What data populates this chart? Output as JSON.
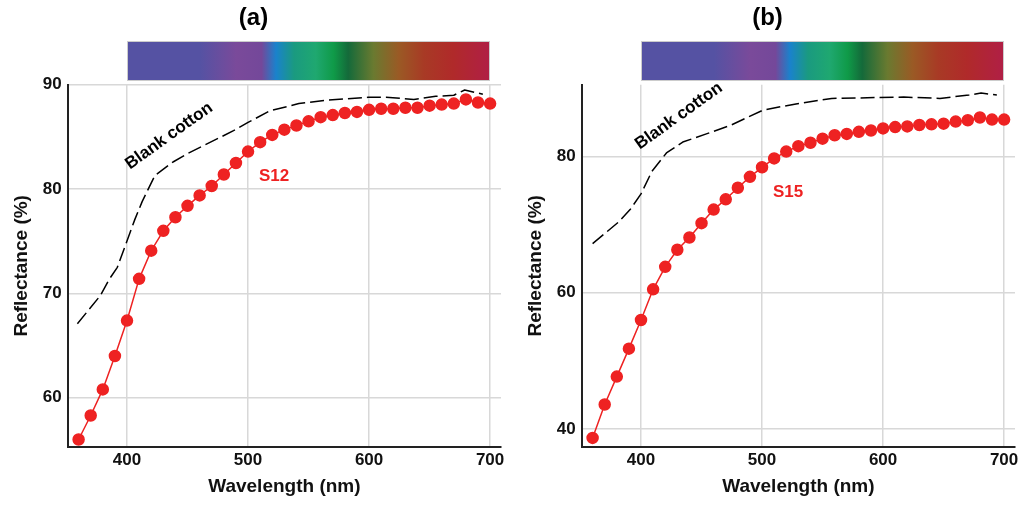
{
  "chart_data": [
    {
      "type": "line",
      "title": "(a)",
      "xlabel": "Wavelength (nm)",
      "ylabel": "Reflectance (%)",
      "xlim": [
        351,
        709
      ],
      "ylim": [
        55.3,
        90
      ],
      "xticks": [
        400,
        500,
        600,
        700
      ],
      "yticks": [
        60,
        70,
        80,
        90
      ],
      "grid": true,
      "legend": false,
      "series": [
        {
          "name": "Blank cotton",
          "color": "#000000",
          "line_style": "dashed",
          "marker": "none",
          "x": [
            359,
            378,
            385,
            392,
            406.5,
            412.5,
            423,
            438,
            450,
            488,
            500,
            518,
            542,
            563,
            599,
            614,
            637,
            655,
            670,
            679,
            694
          ],
          "values": [
            67.1,
            69.8,
            71.3,
            72.5,
            77.1,
            78.8,
            81.3,
            82.6,
            83.4,
            85.6,
            86.4,
            87.5,
            88.2,
            88.5,
            88.8,
            88.8,
            88.6,
            88.9,
            89.0,
            89.5,
            89.1
          ]
        },
        {
          "name": "S12",
          "color": "#ee2222",
          "line_style": "solid",
          "marker": "circle",
          "x": [
            360,
            370,
            380,
            390,
            400,
            410,
            420,
            430,
            440,
            450,
            460,
            470,
            480,
            490,
            500,
            510,
            520,
            530,
            540,
            550,
            560,
            570,
            580,
            590,
            600,
            610,
            620,
            630,
            640,
            650,
            660,
            670,
            680,
            690,
            700
          ],
          "values": [
            56.0,
            58.3,
            60.8,
            64.0,
            67.4,
            71.4,
            74.1,
            76.0,
            77.3,
            78.4,
            79.4,
            80.3,
            81.4,
            82.5,
            83.6,
            84.5,
            85.2,
            85.7,
            86.1,
            86.5,
            86.9,
            87.1,
            87.3,
            87.4,
            87.6,
            87.7,
            87.7,
            87.8,
            87.8,
            88.0,
            88.1,
            88.2,
            88.6,
            88.3,
            88.2
          ]
        }
      ]
    },
    {
      "type": "line",
      "title": "(b)",
      "xlabel": "Wavelength (nm)",
      "ylabel": "Reflectance (%)",
      "xlim": [
        351,
        709
      ],
      "ylim": [
        37.4,
        90.5
      ],
      "xticks": [
        400,
        500,
        600,
        700
      ],
      "yticks": [
        40,
        60,
        80
      ],
      "grid": true,
      "legend": false,
      "series": [
        {
          "name": "Blank cotton",
          "color": "#000000",
          "line_style": "dashed",
          "marker": "none",
          "x": [
            360,
            381,
            391,
            400,
            409,
            421,
            434.5,
            454,
            474.5,
            501,
            528,
            557.5,
            587,
            617,
            647,
            671,
            681,
            694
          ],
          "values": [
            67.2,
            70.3,
            72.2,
            74.5,
            77.8,
            80.5,
            82.1,
            83.3,
            84.6,
            86.8,
            87.7,
            88.5,
            88.6,
            88.7,
            88.5,
            89.0,
            89.3,
            89.0
          ]
        },
        {
          "name": "S15",
          "color": "#ee2222",
          "line_style": "solid",
          "marker": "circle",
          "x": [
            360,
            370,
            380,
            390,
            400,
            410,
            420,
            430,
            440,
            450,
            460,
            470,
            480,
            490,
            500,
            510,
            520,
            530,
            540,
            550,
            560,
            570,
            580,
            590,
            600,
            610,
            620,
            630,
            640,
            650,
            660,
            670,
            680,
            690,
            700
          ],
          "values": [
            38.7,
            43.6,
            47.7,
            51.8,
            56.0,
            60.5,
            63.8,
            66.3,
            68.1,
            70.2,
            72.2,
            73.7,
            75.4,
            77.0,
            78.4,
            79.7,
            80.7,
            81.5,
            82.0,
            82.6,
            83.1,
            83.3,
            83.6,
            83.8,
            84.1,
            84.3,
            84.4,
            84.6,
            84.7,
            84.8,
            85.1,
            85.3,
            85.7,
            85.4,
            85.4
          ]
        }
      ]
    }
  ]
}
